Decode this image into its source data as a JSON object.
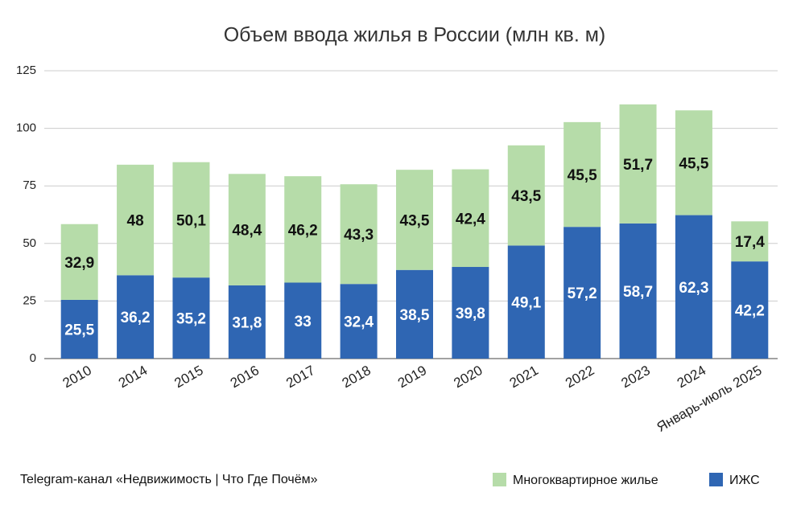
{
  "chart_data": {
    "type": "stacked-bar",
    "title": "Объем ввода жилья в России (млн кв. м)",
    "source": "Telegram-канал «Недвижимость | Что Где Почём»",
    "categories": [
      "2010",
      "2014",
      "2015",
      "2016",
      "2017",
      "2018",
      "2019",
      "2020",
      "2021",
      "2022",
      "2023",
      "2024",
      "Январь-июль 2025"
    ],
    "series": [
      {
        "name": "ИЖС",
        "color": "#2f66b3",
        "values": [
          25.5,
          36.2,
          35.2,
          31.8,
          33,
          32.4,
          38.5,
          39.8,
          49.1,
          57.2,
          58.7,
          62.3,
          42.2
        ],
        "value_labels": [
          "25,5",
          "36,2",
          "35,2",
          "31,8",
          "33",
          "32,4",
          "38,5",
          "39,8",
          "49,1",
          "57,2",
          "58,7",
          "62,3",
          "42,2"
        ]
      },
      {
        "name": "Многоквартирное жилье",
        "color": "#b6dca9",
        "values": [
          32.9,
          48,
          50.1,
          48.4,
          46.2,
          43.3,
          43.5,
          42.4,
          43.5,
          45.5,
          51.7,
          45.5,
          17.4
        ],
        "value_labels": [
          "32,9",
          "48",
          "50,1",
          "48,4",
          "46,2",
          "43,3",
          "43,5",
          "42,4",
          "43,5",
          "45,5",
          "51,7",
          "45,5",
          "17,4"
        ]
      }
    ],
    "ylim": [
      0,
      125
    ],
    "yticks": [
      0,
      25,
      50,
      75,
      100,
      125
    ],
    "grid": true
  }
}
